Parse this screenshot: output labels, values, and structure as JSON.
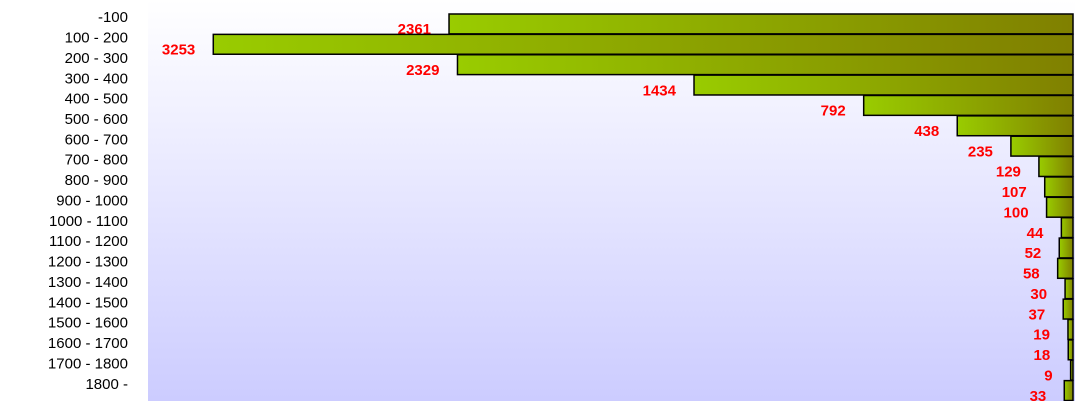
{
  "chart_data": {
    "type": "barh",
    "categories": [
      "-100",
      "100 - 200",
      "200 - 300",
      "300 - 400",
      "400 - 500",
      "500 - 600",
      "600 - 700",
      "700 - 800",
      "800 - 900",
      "900 - 1000",
      "1000 - 1100",
      "1100 - 1200",
      "1200 - 1300",
      "1300 - 1400",
      "1400 - 1500",
      "1500 - 1600",
      "1600 - 1700",
      "1700 - 1800",
      "1800 -"
    ],
    "values": [
      2361,
      3253,
      2329,
      1434,
      792,
      438,
      235,
      129,
      107,
      100,
      44,
      52,
      58,
      30,
      37,
      19,
      18,
      9,
      33
    ],
    "xlim": [
      0,
      3500
    ],
    "color": "#99cc00"
  }
}
